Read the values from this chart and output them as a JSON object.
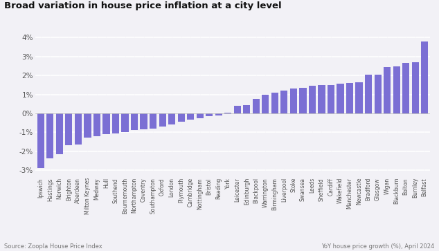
{
  "title": "Broad variation in house price inflation at a city level",
  "source_left": "Source: Zoopla House Price Index",
  "source_right": "YoY house price growth (%), April 2024",
  "bar_color": "#7B6FD4",
  "background_color": "#f2f1f6",
  "grid_color": "#ffffff",
  "categories": [
    "Ipswich",
    "Hastings",
    "Norwich",
    "Brighton",
    "Aberdeen",
    "Milton Keynes",
    "Medway",
    "Hull",
    "Southend",
    "Bournemouth",
    "Northampton",
    "Coventry",
    "Southampton",
    "Oxford",
    "London",
    "Plymouth",
    "Cambridge",
    "Nottingham",
    "Bristol",
    "Reading",
    "York",
    "Leicester",
    "Edinburgh",
    "Blackpool",
    "Warrington",
    "Birmingham",
    "Liverpool",
    "Stoke",
    "Swansea",
    "Leeds",
    "Sheffield",
    "Cardiff",
    "Wakefield",
    "Manchester",
    "Newcastle",
    "Bradford",
    "Glasgow",
    "Wigan",
    "Blackburn",
    "Bolton",
    "Burnley",
    "Belfast"
  ],
  "values": [
    -2.9,
    -2.4,
    -2.15,
    -1.7,
    -1.65,
    -1.3,
    -1.2,
    -1.1,
    -1.05,
    -1.0,
    -0.9,
    -0.85,
    -0.8,
    -0.7,
    -0.6,
    -0.45,
    -0.35,
    -0.25,
    -0.15,
    -0.1,
    0.05,
    0.4,
    0.45,
    0.75,
    1.0,
    1.1,
    1.2,
    1.3,
    1.35,
    1.45,
    1.5,
    1.5,
    1.55,
    1.6,
    1.65,
    2.05,
    2.05,
    2.45,
    2.5,
    2.65,
    2.7,
    3.8
  ],
  "ylim": [
    -3.3,
    4.4
  ],
  "yticks": [
    -3,
    -2,
    -1,
    0,
    1,
    2,
    3,
    4
  ],
  "ytick_labels": [
    "-3%",
    "-2%",
    "-1%",
    "0%",
    "1%",
    "2%",
    "3%",
    "4%"
  ]
}
